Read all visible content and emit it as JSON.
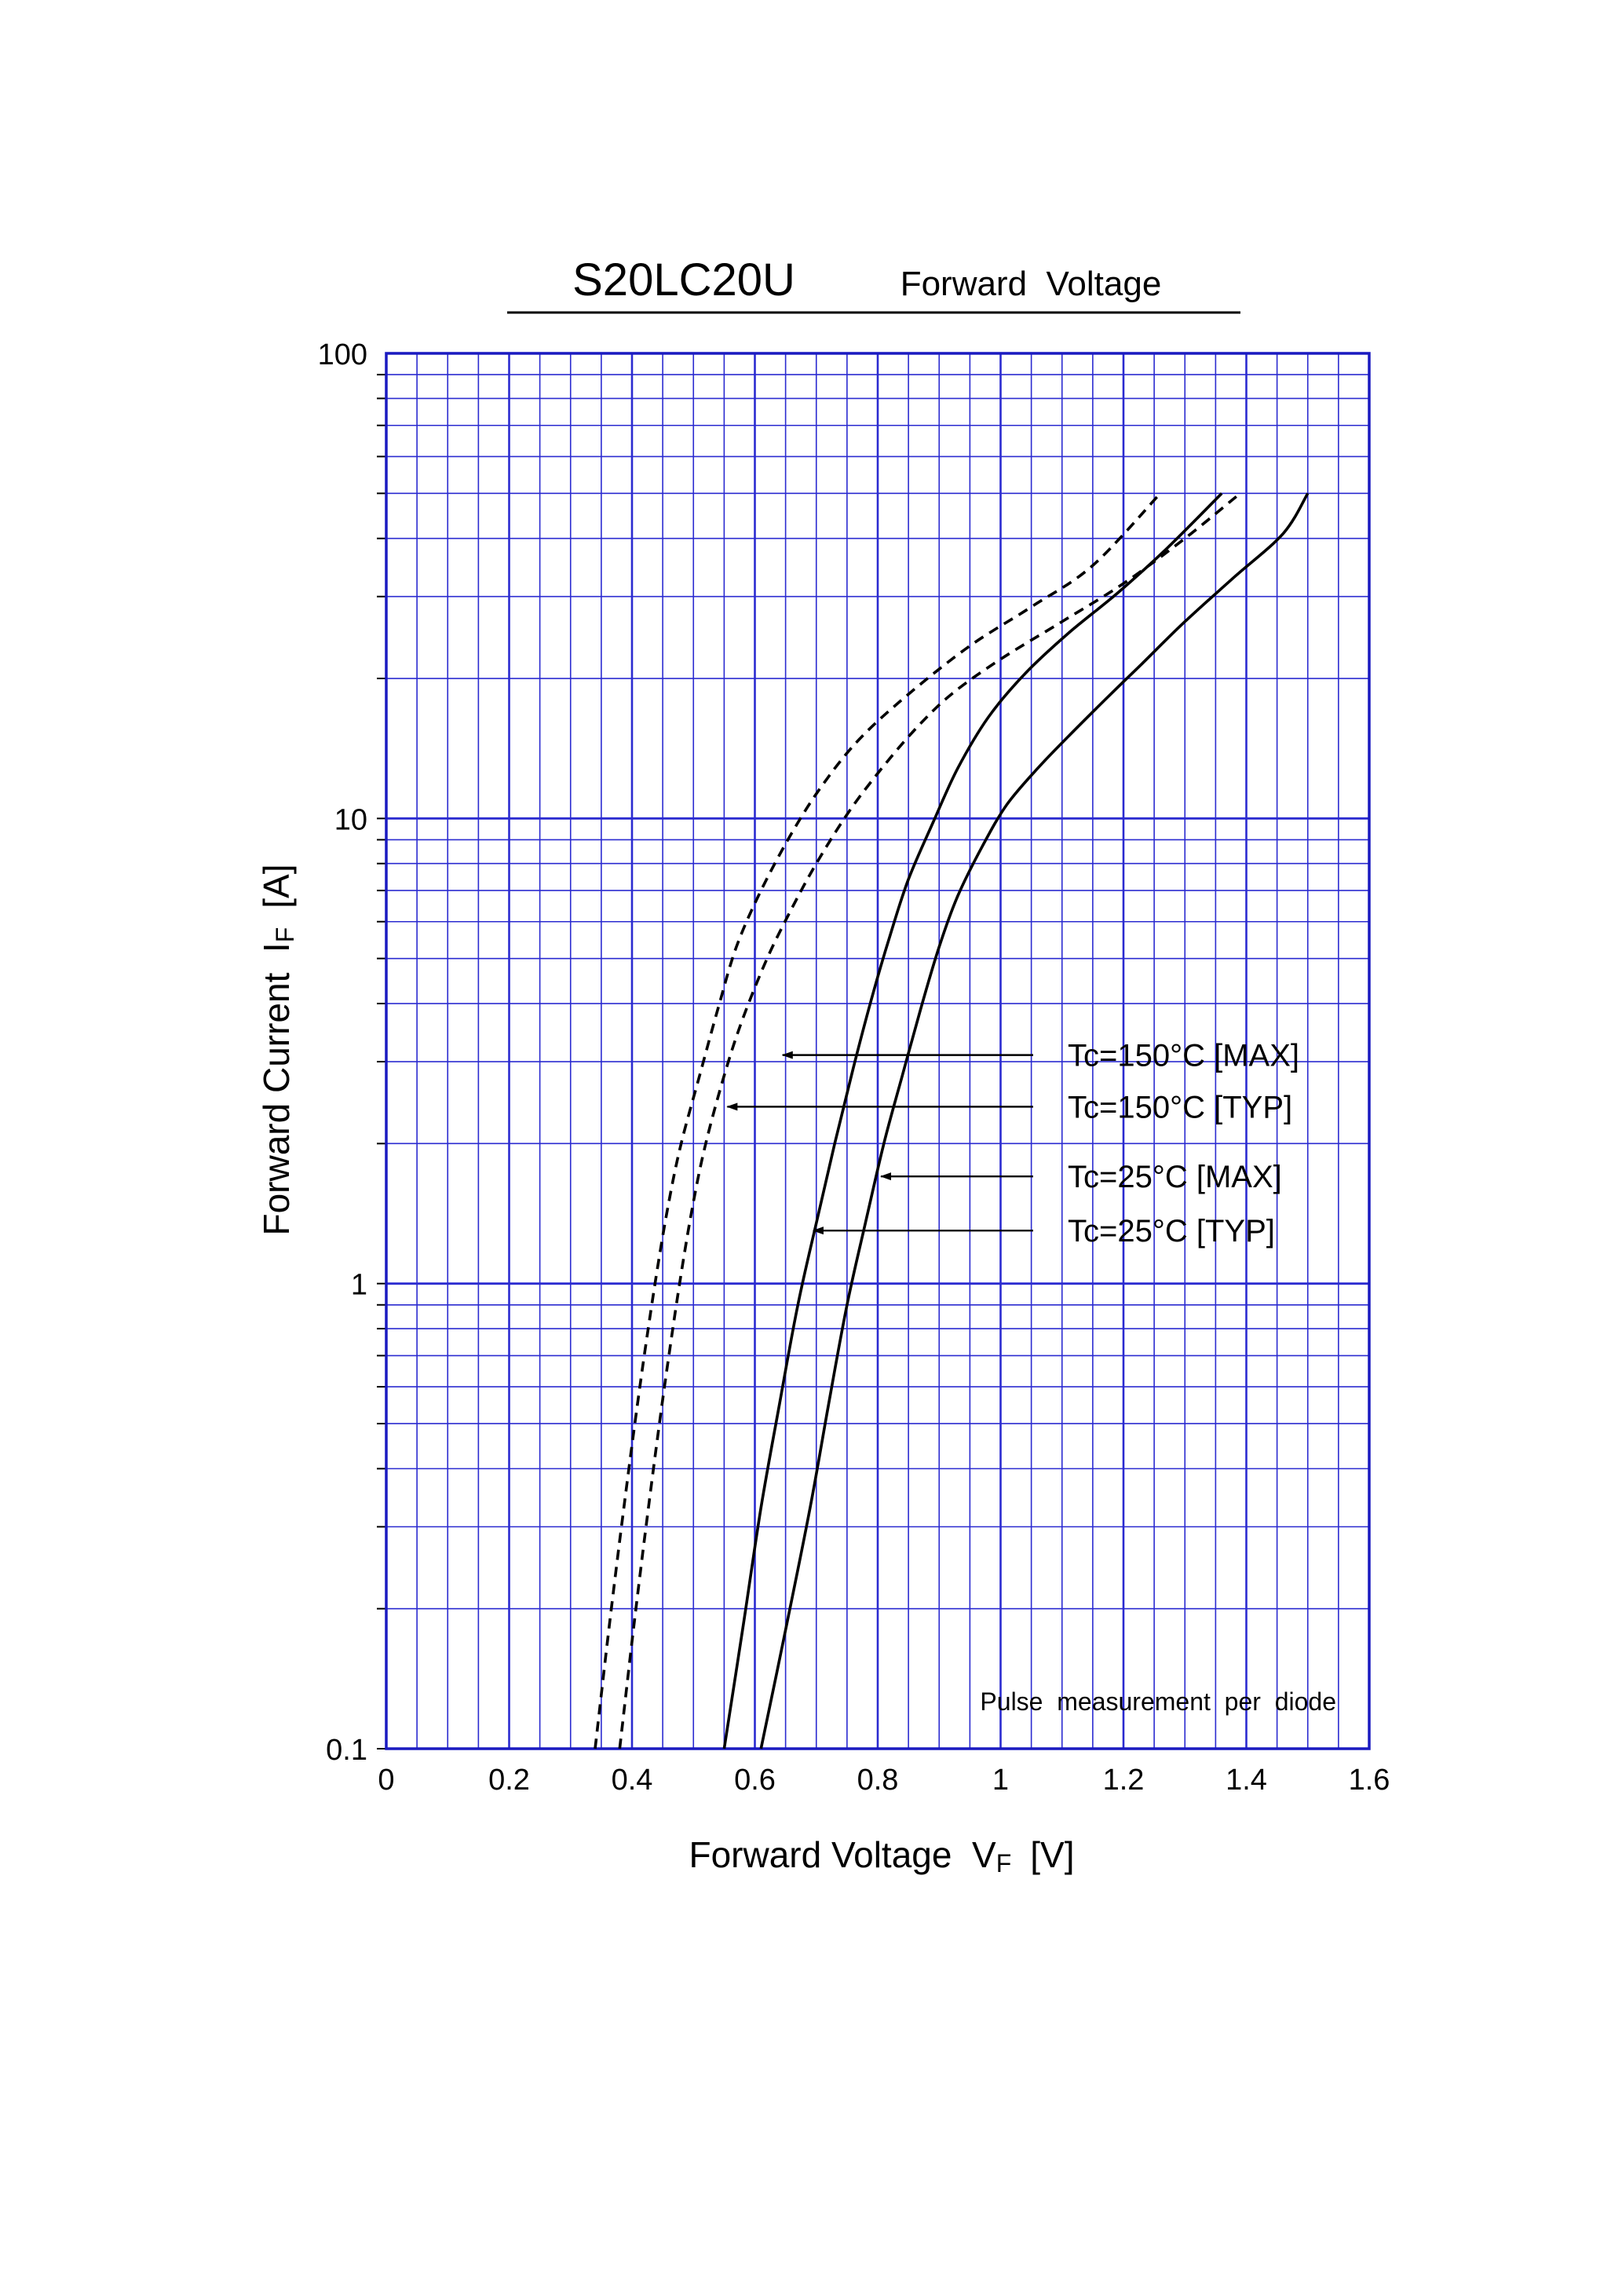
{
  "chart_data": {
    "type": "line",
    "title": "S20LC20U",
    "subtitle": "Forward  Voltage",
    "xlabel": {
      "main": "Forward Voltage  V",
      "sub": "F",
      "unit": "[V]"
    },
    "ylabel": {
      "main": "Forward Current  I",
      "sub": "F",
      "unit": "[A]"
    },
    "xlim": [
      0,
      1.6
    ],
    "ylim": [
      0.1,
      100
    ],
    "yscale": "log",
    "grid": true,
    "xticks": [
      0,
      0.2,
      0.4,
      0.6,
      0.8,
      1,
      1.2,
      1.4,
      1.6
    ],
    "xtick_labels": [
      "0",
      "0.2",
      "0.4",
      "0.6",
      "0.8",
      "1",
      "1.2",
      "1.4",
      "1.6"
    ],
    "yticks": [
      0.1,
      1,
      10,
      100
    ],
    "ytick_labels": [
      "0.1",
      "1",
      "10",
      "100"
    ],
    "note": "Pulse  measurement  per  diode",
    "colors": {
      "grid": "#2b2bd0",
      "frame": "#1a1ac0",
      "curve": "#000000"
    },
    "series": [
      {
        "name": "Tc=150°C [MAX]",
        "style": "dashed",
        "arrow_at": [
          0.64,
          3.1
        ],
        "points": [
          [
            0.38,
            0.1
          ],
          [
            0.4,
            0.17
          ],
          [
            0.42,
            0.28
          ],
          [
            0.44,
            0.45
          ],
          [
            0.46,
            0.7
          ],
          [
            0.48,
            1.05
          ],
          [
            0.5,
            1.5
          ],
          [
            0.52,
            2.0
          ],
          [
            0.55,
            2.8
          ],
          [
            0.58,
            3.7
          ],
          [
            0.62,
            5.0
          ],
          [
            0.66,
            6.4
          ],
          [
            0.7,
            8.0
          ],
          [
            0.75,
            10.2
          ],
          [
            0.8,
            12.5
          ],
          [
            0.86,
            15.5
          ],
          [
            0.92,
            18.5
          ],
          [
            1.0,
            22
          ],
          [
            1.1,
            26.5
          ],
          [
            1.2,
            32
          ],
          [
            1.3,
            40
          ],
          [
            1.39,
            50
          ]
        ]
      },
      {
        "name": "Tc=150°C [TYP]",
        "style": "dashed",
        "arrow_at": [
          0.55,
          2.4
        ],
        "points": [
          [
            0.34,
            0.1
          ],
          [
            0.36,
            0.17
          ],
          [
            0.38,
            0.28
          ],
          [
            0.4,
            0.45
          ],
          [
            0.42,
            0.7
          ],
          [
            0.44,
            1.05
          ],
          [
            0.46,
            1.5
          ],
          [
            0.48,
            2.0
          ],
          [
            0.51,
            2.8
          ],
          [
            0.54,
            3.9
          ],
          [
            0.57,
            5.3
          ],
          [
            0.61,
            7.0
          ],
          [
            0.66,
            9.3
          ],
          [
            0.71,
            11.8
          ],
          [
            0.77,
            14.8
          ],
          [
            0.85,
            18.5
          ],
          [
            0.95,
            23.5
          ],
          [
            1.05,
            28.5
          ],
          [
            1.15,
            35
          ],
          [
            1.26,
            50
          ]
        ]
      },
      {
        "name": "Tc=25°C [MAX]",
        "style": "solid",
        "arrow_at": [
          0.8,
          1.7
        ],
        "points": [
          [
            0.61,
            0.1
          ],
          [
            0.65,
            0.18
          ],
          [
            0.69,
            0.33
          ],
          [
            0.72,
            0.55
          ],
          [
            0.75,
            0.9
          ],
          [
            0.78,
            1.35
          ],
          [
            0.81,
            2.0
          ],
          [
            0.84,
            2.8
          ],
          [
            0.87,
            3.9
          ],
          [
            0.9,
            5.3
          ],
          [
            0.93,
            6.8
          ],
          [
            0.97,
            8.7
          ],
          [
            1.01,
            10.7
          ],
          [
            1.06,
            12.8
          ],
          [
            1.11,
            15.0
          ],
          [
            1.17,
            18.0
          ],
          [
            1.23,
            21.5
          ],
          [
            1.3,
            26.5
          ],
          [
            1.38,
            33
          ],
          [
            1.46,
            41
          ],
          [
            1.5,
            50
          ]
        ]
      },
      {
        "name": "Tc=25°C [TYP]",
        "style": "solid",
        "arrow_at": [
          0.69,
          1.3
        ],
        "points": [
          [
            0.55,
            0.1
          ],
          [
            0.58,
            0.18
          ],
          [
            0.61,
            0.33
          ],
          [
            0.64,
            0.55
          ],
          [
            0.67,
            0.9
          ],
          [
            0.7,
            1.35
          ],
          [
            0.73,
            2.0
          ],
          [
            0.76,
            2.9
          ],
          [
            0.79,
            4.1
          ],
          [
            0.82,
            5.6
          ],
          [
            0.85,
            7.4
          ],
          [
            0.89,
            9.8
          ],
          [
            0.93,
            12.8
          ],
          [
            0.98,
            16.5
          ],
          [
            1.04,
            20.5
          ],
          [
            1.11,
            25
          ],
          [
            1.19,
            30.5
          ],
          [
            1.27,
            38
          ],
          [
            1.36,
            50
          ]
        ]
      }
    ]
  }
}
